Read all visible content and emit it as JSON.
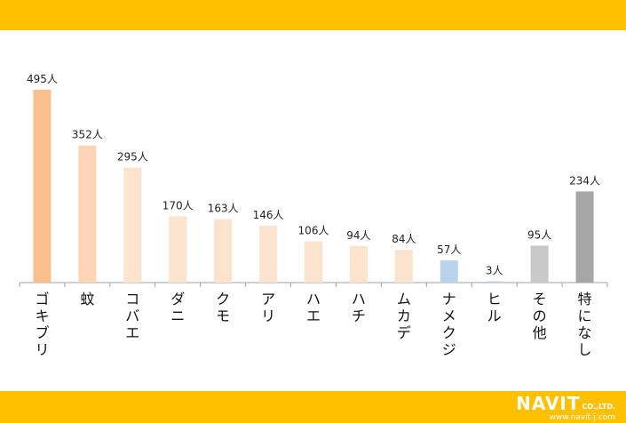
{
  "chart_data": {
    "type": "bar",
    "categories": [
      "ゴキブリ",
      "蚊",
      "コバエ",
      "ダニ",
      "クモ",
      "アリ",
      "ハエ",
      "ハチ",
      "ムカデ",
      "ナメクジ",
      "ヒル",
      "その他",
      "特になし"
    ],
    "values": [
      495,
      352,
      295,
      170,
      163,
      146,
      106,
      94,
      84,
      57,
      3,
      95,
      234
    ],
    "value_labels": [
      "495人",
      "352人",
      "295人",
      "170人",
      "163人",
      "146人",
      "106人",
      "94人",
      "84人",
      "57人",
      "3人",
      "95人",
      "234人"
    ],
    "colors": [
      "#F9C08E",
      "#FBD5B5",
      "#FCE3CE",
      "#FCE3CE",
      "#FCE3CE",
      "#FCE3CE",
      "#FCE3CE",
      "#FCE3CE",
      "#FCE3CE",
      "#B9D3EC",
      "#B9D3EC",
      "#C9C9C9",
      "#A6A6A6"
    ],
    "title": "",
    "xlabel": "",
    "ylabel": "",
    "ylim": [
      0,
      500
    ],
    "grid": false,
    "legend": "none"
  },
  "branding": {
    "logo_text": "NAVIT",
    "logo_suffix": "CO.,LTD.",
    "url": "www.navit-j.com"
  },
  "colors": {
    "band": "#FFC000",
    "axis": "#A0A0A0"
  }
}
